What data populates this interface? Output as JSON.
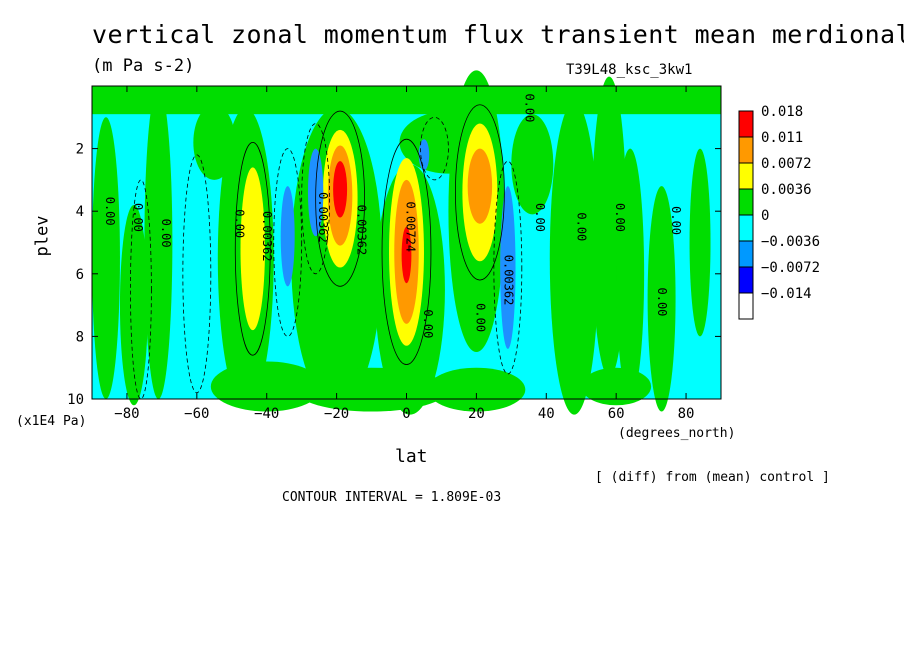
{
  "chart_data": {
    "type": "heatmap",
    "title": "vertical zonal momentum flux transient mean merdional",
    "units": "(m Pa s-2)",
    "run_label": "T39L48_ksc_3kw1",
    "xlabel": "lat",
    "x_units": "(degrees_north)",
    "ylabel": "plev",
    "y_units": "(x1E4 Pa)",
    "xlim": [
      -90,
      90
    ],
    "ylim": [
      10,
      0
    ],
    "x_ticks": [
      -80,
      -60,
      -40,
      -20,
      0,
      20,
      40,
      60,
      80
    ],
    "y_ticks": [
      2,
      4,
      6,
      8,
      10
    ],
    "grid": false,
    "legend_position": "right",
    "diff_note": "[ (diff) from (mean) control ]",
    "contour_interval": "CONTOUR INTERVAL = 1.809E-03",
    "legend": [
      {
        "label": "0.018",
        "color": "#ff0000"
      },
      {
        "label": "0.011",
        "color": "#ff9900"
      },
      {
        "label": "0.0072",
        "color": "#ffff00"
      },
      {
        "label": "0.0036",
        "color": "#00dd00"
      },
      {
        "label": "0",
        "color": "#00ffff"
      },
      {
        "label": "-0.0036",
        "color": "#0099ff"
      },
      {
        "label": "-0.0072",
        "color": "#0000ff"
      },
      {
        "label": "-0.014",
        "color": "#ffffff"
      }
    ],
    "fill_colors": {
      "cyan": "#00ffff",
      "green": "#00dd00",
      "yellow": "#ffff00",
      "orange": "#ff9900",
      "red": "#ff0000",
      "blue": "#1e90ff"
    },
    "features": [
      {
        "sign": "positive",
        "lat": -19,
        "plev": 3.6,
        "max": 0.018
      },
      {
        "sign": "positive",
        "lat": 0,
        "plev": 5.3,
        "max": 0.013
      },
      {
        "sign": "positive",
        "lat": 21,
        "plev": 3.4,
        "max": 0.012
      },
      {
        "sign": "positive",
        "lat": -44,
        "plev": 5.2,
        "max": 0.008
      },
      {
        "sign": "negative",
        "lat": -33,
        "plev": 4.8,
        "min": -0.008
      },
      {
        "sign": "negative",
        "lat": -26,
        "plev": 3.6,
        "min": -0.008
      },
      {
        "sign": "negative",
        "lat": 29,
        "plev": 5.8,
        "min": -0.008
      }
    ],
    "contour_labels": [
      {
        "text": "0.00",
        "lat": -86,
        "plev": 4.0
      },
      {
        "text": "0.00",
        "lat": -78,
        "plev": 4.2
      },
      {
        "text": "0.00",
        "lat": -70,
        "plev": 4.7
      },
      {
        "text": "0.00",
        "lat": -49,
        "plev": 4.4
      },
      {
        "text": "0.00362",
        "lat": -41,
        "plev": 4.8
      },
      {
        "text": "0.00362",
        "lat": -25,
        "plev": 4.2
      },
      {
        "text": "0.00362",
        "lat": -14,
        "plev": 4.6
      },
      {
        "text": "0.00724",
        "lat": 0,
        "plev": 4.5
      },
      {
        "text": "0.00",
        "lat": 5,
        "plev": 7.6
      },
      {
        "text": "0.00",
        "lat": 20,
        "plev": 7.4
      },
      {
        "text": "0.00362",
        "lat": 28,
        "plev": 6.2
      },
      {
        "text": "0.00",
        "lat": 34,
        "plev": 0.7
      },
      {
        "text": "0.00",
        "lat": 37,
        "plev": 4.2
      },
      {
        "text": "0.00",
        "lat": 49,
        "plev": 4.5
      },
      {
        "text": "0.00",
        "lat": 60,
        "plev": 4.2
      },
      {
        "text": "0.00",
        "lat": 72,
        "plev": 6.9
      },
      {
        "text": "0.00",
        "lat": 76,
        "plev": 4.3
      }
    ]
  }
}
